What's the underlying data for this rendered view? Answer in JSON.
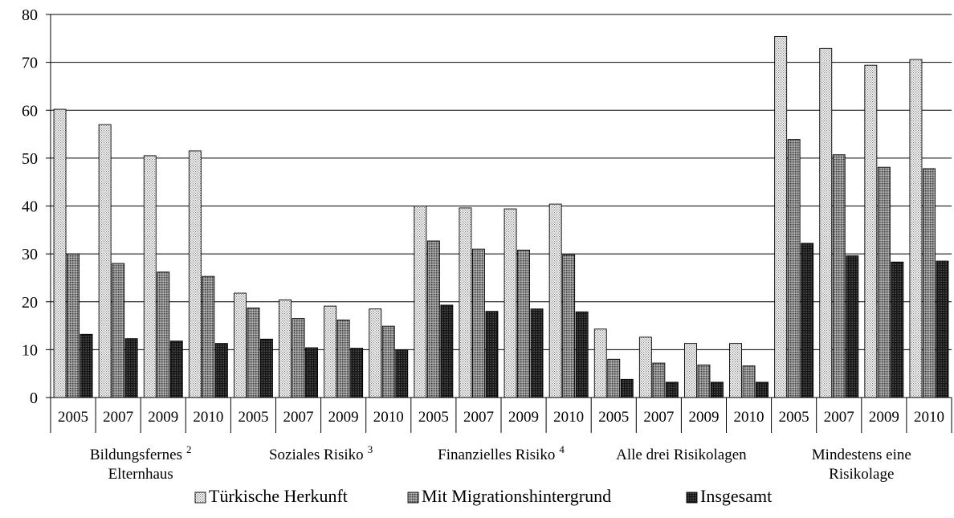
{
  "chart_data": {
    "type": "bar",
    "ylim": [
      0,
      80
    ],
    "y_ticks": [
      "0",
      "10",
      "20",
      "30",
      "40",
      "50",
      "60",
      "70",
      "80"
    ],
    "grid": true,
    "legend_placement": "bottom",
    "groups": [
      {
        "label_lines": [
          "Bildungsfernes",
          "Elternhaus"
        ],
        "superscript": "2"
      },
      {
        "label_lines": [
          "Soziales Risiko"
        ],
        "superscript": "3"
      },
      {
        "label_lines": [
          "Finanzielles Risiko"
        ],
        "superscript": "4"
      },
      {
        "label_lines": [
          "Alle drei Risikolagen"
        ],
        "superscript": ""
      },
      {
        "label_lines": [
          "Mindestens eine",
          "Risikolage"
        ],
        "superscript": ""
      }
    ],
    "years": [
      "2005",
      "2007",
      "2009",
      "2010"
    ],
    "series": [
      {
        "name": "Türkische Herkunft",
        "pattern": "light-dots",
        "values": [
          [
            60.2,
            57.0,
            50.5,
            51.5
          ],
          [
            21.8,
            20.4,
            19.1,
            18.5
          ],
          [
            40.0,
            39.6,
            39.4,
            40.4
          ],
          [
            14.3,
            12.6,
            11.3,
            11.3
          ],
          [
            75.4,
            72.9,
            69.4,
            70.6
          ]
        ]
      },
      {
        "name": "Mit Migrationshintergrund",
        "pattern": "medium-grey",
        "values": [
          [
            30.0,
            28.0,
            26.2,
            25.3
          ],
          [
            18.7,
            16.5,
            16.2,
            14.9
          ],
          [
            32.7,
            31.0,
            30.8,
            29.8
          ],
          [
            8.0,
            7.2,
            6.8,
            6.6
          ],
          [
            53.9,
            50.7,
            48.1,
            47.8
          ]
        ]
      },
      {
        "name": "Insgesamt",
        "pattern": "dark",
        "values": [
          [
            13.2,
            12.3,
            11.8,
            11.3
          ],
          [
            12.2,
            10.4,
            10.3,
            9.9
          ],
          [
            19.3,
            18.0,
            18.5,
            17.9
          ],
          [
            3.8,
            3.2,
            3.2,
            3.2
          ],
          [
            32.2,
            29.6,
            28.3,
            28.5
          ]
        ]
      }
    ]
  }
}
